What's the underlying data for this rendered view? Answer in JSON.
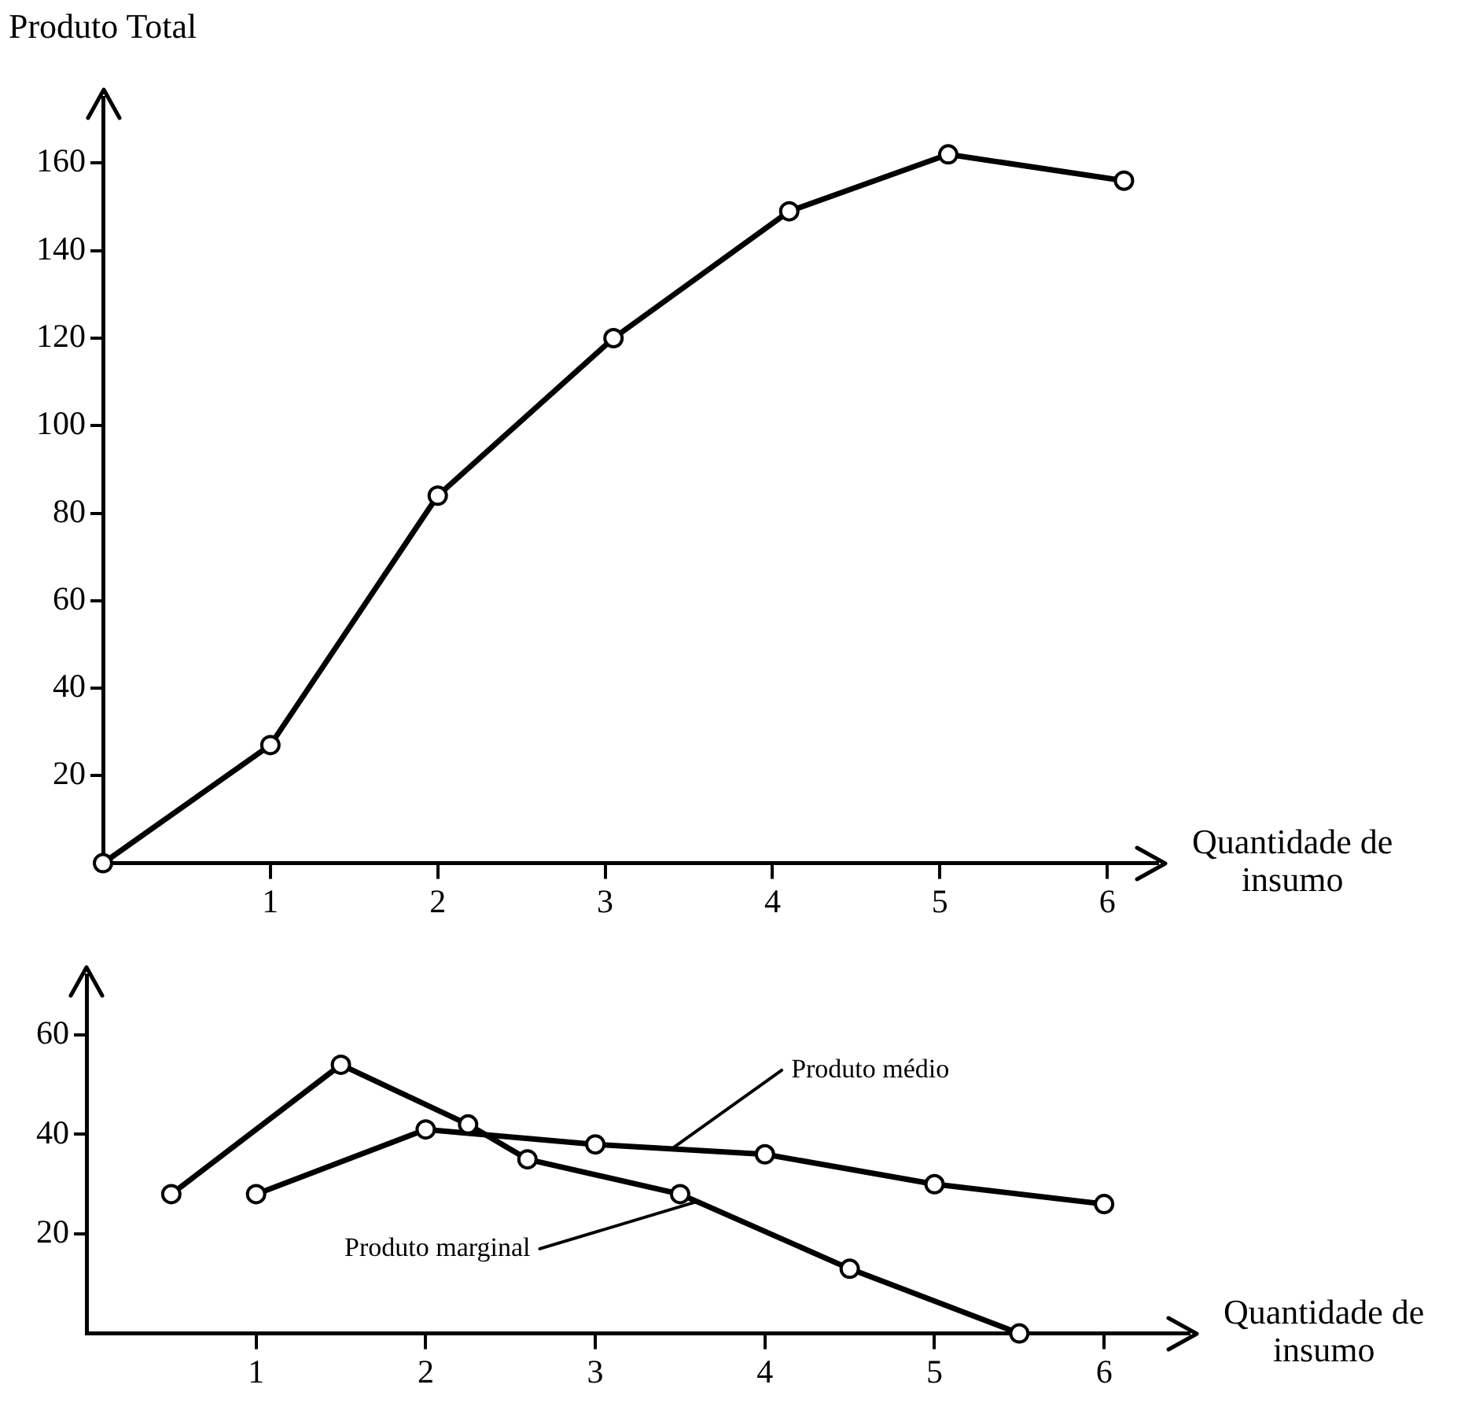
{
  "chart_data": [
    {
      "type": "line",
      "ylabel": "Produto Total",
      "xlabel": "Quantidade de insumo",
      "marker": "circle",
      "xlim": [
        0,
        6.3
      ],
      "xticks": [
        1,
        2,
        3,
        4,
        5,
        6
      ],
      "ylim": [
        0,
        175
      ],
      "yticks": [
        20,
        40,
        60,
        80,
        100,
        120,
        140,
        160
      ],
      "series": [
        {
          "color": "#000000",
          "x": [
            0,
            1,
            2,
            3.05,
            4.1,
            5.05,
            6.1
          ],
          "values": [
            0,
            27,
            84,
            120,
            149,
            162,
            156
          ]
        }
      ]
    },
    {
      "type": "line",
      "xlabel": "Quantidade de insumo",
      "marker": "circle",
      "xlim": [
        0,
        6.5
      ],
      "xticks": [
        1,
        2,
        3,
        4,
        5,
        6
      ],
      "ylim": [
        0,
        72
      ],
      "yticks": [
        20,
        40,
        60
      ],
      "series": [
        {
          "name": "Produto marginal",
          "color": "#000000",
          "x": [
            0.5,
            1.5,
            2.25,
            2.6,
            3.5,
            4.5,
            5.5
          ],
          "values": [
            28,
            54,
            42,
            35,
            28,
            13,
            0
          ]
        },
        {
          "name": "Produto médio",
          "color": "#000000",
          "x": [
            1,
            2,
            3,
            4,
            5,
            6
          ],
          "values": [
            28,
            41,
            38,
            36,
            30,
            26
          ]
        }
      ]
    }
  ]
}
